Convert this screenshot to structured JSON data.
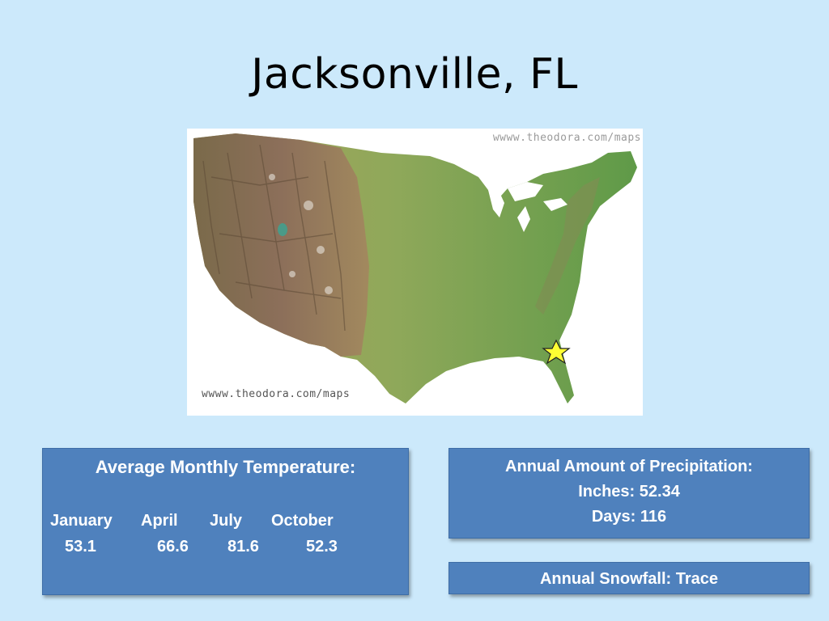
{
  "slide": {
    "title": "Jacksonville, FL"
  },
  "map": {
    "watermark_top": "wwww.theodora.com/maps",
    "watermark_bottom": "wwww.theodora.com/maps",
    "marker_icon": "star-icon",
    "marker_color": "#ffff33"
  },
  "temperature": {
    "heading": "Average Monthly Temperature:",
    "months": [
      "January",
      "April",
      "July",
      "October"
    ],
    "values": [
      "53.1",
      "66.6",
      "81.6",
      "52.3"
    ]
  },
  "precipitation": {
    "heading": "Annual Amount of Precipitation:",
    "inches": "Inches: 52.34",
    "days": "Days: 116"
  },
  "snowfall": {
    "label": "Annual Snowfall: Trace"
  },
  "colors": {
    "background": "#cce9fb",
    "box": "#4f81bd"
  }
}
